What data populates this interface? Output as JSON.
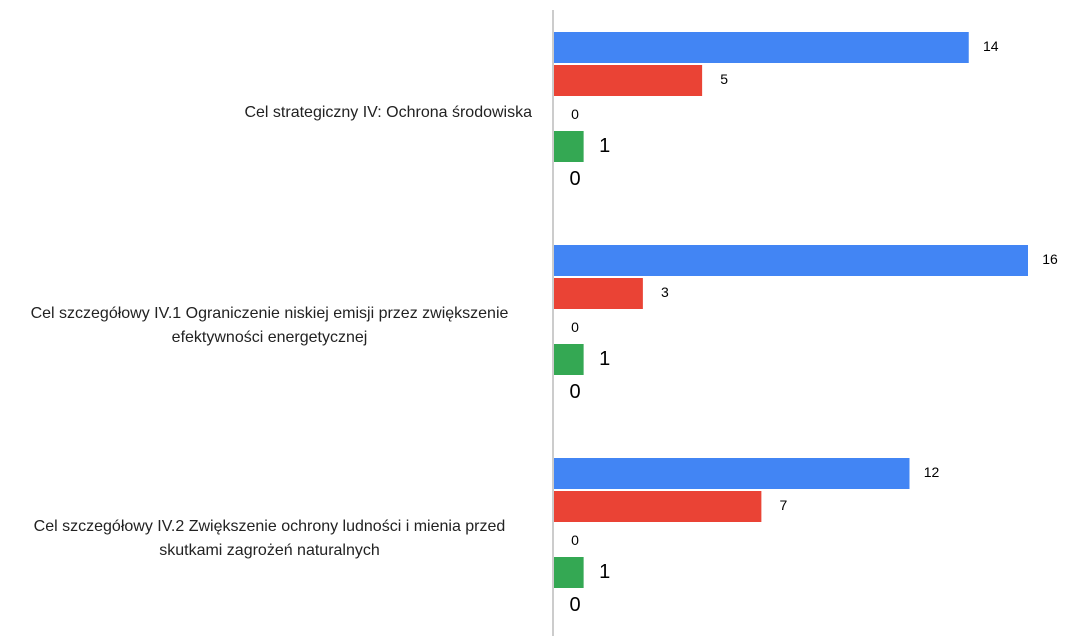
{
  "chart_data": {
    "type": "hbar",
    "categories": [
      "Cel strategiczny IV: Ochrona środowiska",
      "Cel szczegółowy IV.1 Ograniczenie niskiej emisji przez zwiększenie efektywności energetycznej",
      "Cel szczegółowy IV.2 Zwiększenie ochrony ludności i mienia przed skutkami zagrożeń naturalnych"
    ],
    "series": [
      {
        "color": "#4285f4",
        "values": [
          14,
          16,
          12
        ]
      },
      {
        "color": "#ea4335",
        "values": [
          5,
          3,
          7
        ]
      },
      {
        "color": "#fbbc04",
        "values": [
          0,
          0,
          0
        ]
      },
      {
        "color": "#34a853",
        "values": [
          1,
          1,
          1
        ]
      },
      {
        "color": "#ff6d01",
        "values": [
          0,
          0,
          0
        ]
      }
    ],
    "xlim": [
      0,
      16
    ]
  }
}
